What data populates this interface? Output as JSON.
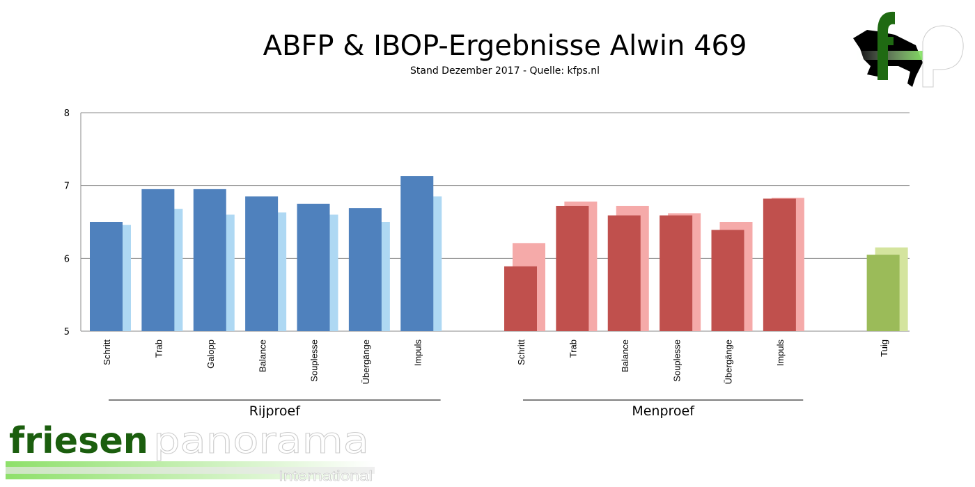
{
  "chart_data": {
    "type": "bar",
    "title": "ABFP & IBOP-Ergebnisse Alwin 469",
    "subtitle": "Stand Dezember 2017 - Quelle: kfps.nl",
    "ylim": [
      5,
      8
    ],
    "yticks": [
      "5",
      "6",
      "7",
      "8"
    ],
    "grid": true,
    "groups": [
      {
        "name": "Rijproef",
        "color": "#4f81bd",
        "light_color": "#aed8f3",
        "categories": [
          "Schritt",
          "Trab",
          "Galopp",
          "Balance",
          "Souplesse",
          "Übergänge",
          "Impuls"
        ],
        "values": [
          6.5,
          6.95,
          6.95,
          6.85,
          6.75,
          6.69,
          7.13
        ],
        "comparison": [
          6.46,
          6.68,
          6.6,
          6.63,
          6.6,
          6.5,
          6.85
        ]
      },
      {
        "name": "Menproef",
        "color": "#c0504d",
        "light_color": "#f5aaa9",
        "categories": [
          "Schritt",
          "Trab",
          "Balance",
          "Souplesse",
          "Übergänge",
          "Impuls"
        ],
        "values": [
          5.89,
          6.72,
          6.59,
          6.59,
          6.39,
          6.82
        ],
        "comparison": [
          6.21,
          6.78,
          6.72,
          6.62,
          6.5,
          6.83
        ]
      },
      {
        "name": "",
        "color": "#9bbb59",
        "light_color": "#d4e49e",
        "categories": [
          "Tuig"
        ],
        "values": [
          6.05
        ],
        "comparison": [
          6.15
        ]
      }
    ]
  },
  "logos": {
    "top_right": "fp",
    "bottom_left": "friesenpanorama International"
  }
}
